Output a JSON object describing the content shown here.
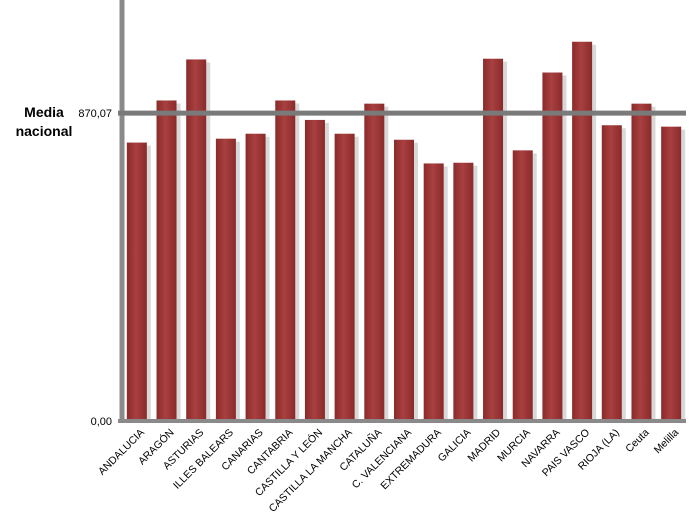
{
  "chart_data": {
    "type": "bar",
    "title": "",
    "xlabel": "",
    "ylabel": "",
    "categories": [
      "ANDALUCIA",
      "ARAGÓN",
      "ASTURIAS",
      "ILLES BALEARS",
      "CANARIAS",
      "CANTABRIA",
      "CASTILLA Y LEÓN",
      "CASTILLA LA MANCHA",
      "CATALUÑA",
      "C. VALENCIANA",
      "EXTREMADURA",
      "GALICIA",
      "MADRID",
      "MURCIA",
      "NAVARRA",
      "PAIS VASCO",
      "RIOJA (LA)",
      "Ceuta",
      "Melilla"
    ],
    "values": [
      787,
      906,
      1022,
      798,
      812,
      906,
      851,
      812,
      897,
      795,
      728,
      730,
      1024,
      765,
      985,
      1072,
      836,
      897,
      832
    ],
    "ylim": [
      0,
      1190
    ],
    "yticks": [
      {
        "value": 0,
        "label": "0,00"
      },
      {
        "value": 870.07,
        "label": "870,07"
      }
    ],
    "reference_line": {
      "value": 870.07,
      "label": "Media nacional"
    },
    "grid": false,
    "legend": "none",
    "colors": {
      "bar": "#8b2a2a",
      "bar_highlight": "#a84040",
      "bar_shadow": "#d8d8d8",
      "axis": "#8a8a8a",
      "reference_line": "#7a7a7a"
    }
  }
}
